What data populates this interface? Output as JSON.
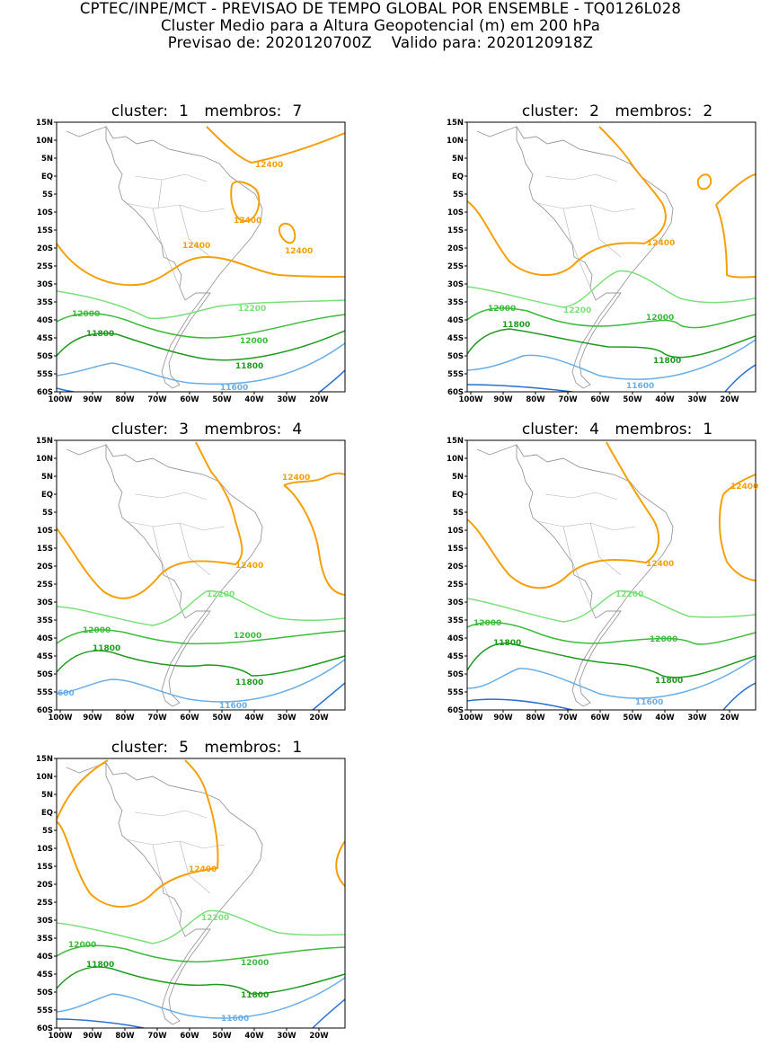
{
  "title": {
    "line1": "CPTEC/INPE/MCT - PREVISAO DE TEMPO GLOBAL POR ENSEMBLE - TQ0126L028",
    "line2": "Cluster Medio para a Altura Geopotencial (m) em 200 hPa",
    "line3": "Previsao de: 2020120700Z    Valido para: 2020120918Z"
  },
  "axes": {
    "lat_ticks": [
      "15N",
      "10N",
      "5N",
      "EQ",
      "5S",
      "10S",
      "15S",
      "20S",
      "25S",
      "30S",
      "35S",
      "40S",
      "45S",
      "50S",
      "55S",
      "60S"
    ],
    "lon_ticks": [
      "100W",
      "90W",
      "80W",
      "70W",
      "60W",
      "50W",
      "40W",
      "30W",
      "20W"
    ]
  },
  "colors": {
    "c12400": "#f5a00a",
    "c12200": "#7be07b",
    "c12000": "#3dbb3d",
    "c11800": "#1f9a1f",
    "c11600": "#6aaee8",
    "c11400": "#2b6fd0",
    "coast": "#9a9a9a"
  },
  "panels": [
    {
      "cluster_label": "cluster:",
      "cluster": "1",
      "members_label": "membros:",
      "members": "7",
      "labels": {
        "a": "12400",
        "b": "12400",
        "c": "12400",
        "d": "12400",
        "e": "12200",
        "f": "12000",
        "g": "12000",
        "h": "11800",
        "i": "11800",
        "j": "11600"
      }
    },
    {
      "cluster_label": "cluster:",
      "cluster": "2",
      "members_label": "membros:",
      "members": "2",
      "labels": {
        "a": "12400",
        "e": "12200",
        "f": "12000",
        "g": "12000",
        "h": "11800",
        "i": "11800",
        "j": "11600"
      }
    },
    {
      "cluster_label": "cluster:",
      "cluster": "3",
      "members_label": "membros:",
      "members": "4",
      "labels": {
        "a": "12400",
        "b": "12400",
        "e": "12200",
        "f": "12000",
        "g": "12000",
        "h": "11800",
        "i": "11800",
        "j": "11600",
        "k": "600"
      }
    },
    {
      "cluster_label": "cluster:",
      "cluster": "4",
      "members_label": "membros:",
      "members": "1",
      "labels": {
        "a": "12400",
        "b": "12400",
        "e": "12200",
        "f": "12000",
        "g": "12000",
        "h": "11800",
        "i": "11800",
        "j": "11600"
      }
    },
    {
      "cluster_label": "cluster:",
      "cluster": "5",
      "members_label": "membros:",
      "members": "1",
      "labels": {
        "a": "12400",
        "e": "12200",
        "f": "12000",
        "g": "12000",
        "h": "11800",
        "i": "11800",
        "j": "11600"
      }
    }
  ]
}
